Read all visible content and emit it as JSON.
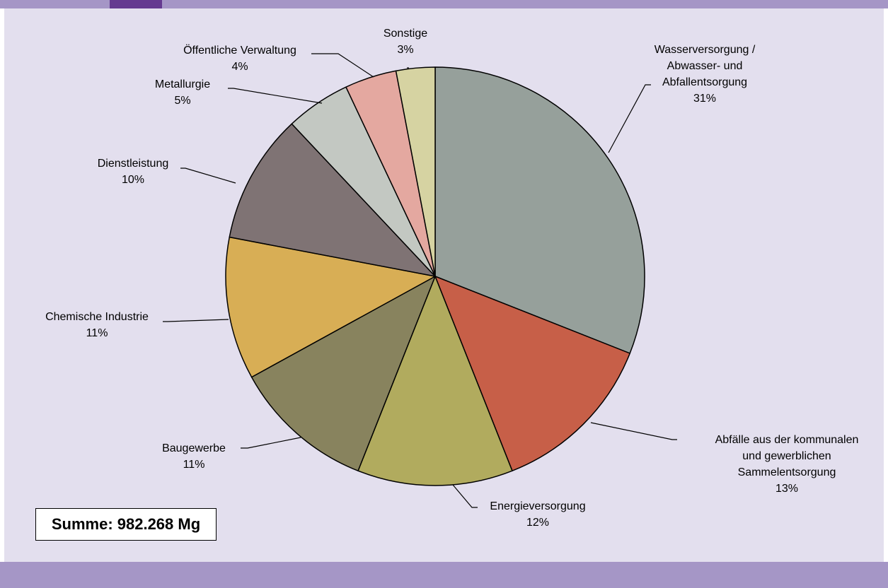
{
  "total_label": "Summe: 982.268 Mg",
  "colors": {
    "background": "#e3dfee",
    "band": "#a596c6",
    "accent": "#653a90"
  },
  "chart_data": {
    "type": "pie",
    "unit": "%",
    "slices": [
      {
        "label": [
          "Wasserversorgung /",
          "Abwasser- und",
          "Abfallentsorgung"
        ],
        "value": 31,
        "display": "31%",
        "color": "#96a09b"
      },
      {
        "label": [
          "Abfälle aus der kommunalen",
          "und gewerblichen",
          "Sammelentsorgung"
        ],
        "value": 13,
        "display": "13%",
        "color": "#c75f48"
      },
      {
        "label": [
          "Energieversorgung"
        ],
        "value": 12,
        "display": "12%",
        "color": "#b1ab5e"
      },
      {
        "label": [
          "Baugewerbe"
        ],
        "value": 11,
        "display": "11%",
        "color": "#88835e"
      },
      {
        "label": [
          "Chemische Industrie"
        ],
        "value": 11,
        "display": "11%",
        "color": "#d8ae55"
      },
      {
        "label": [
          "Dienstleistung"
        ],
        "value": 10,
        "display": "10%",
        "color": "#7f7374"
      },
      {
        "label": [
          "Metallurgie"
        ],
        "value": 5,
        "display": "5%",
        "color": "#c3c8c2"
      },
      {
        "label": [
          "Öffentliche Verwaltung"
        ],
        "value": 4,
        "display": "4%",
        "color": "#e4a8a0"
      },
      {
        "label": [
          "Sonstige"
        ],
        "value": 3,
        "display": "3%",
        "color": "#d6d3a2"
      }
    ]
  }
}
